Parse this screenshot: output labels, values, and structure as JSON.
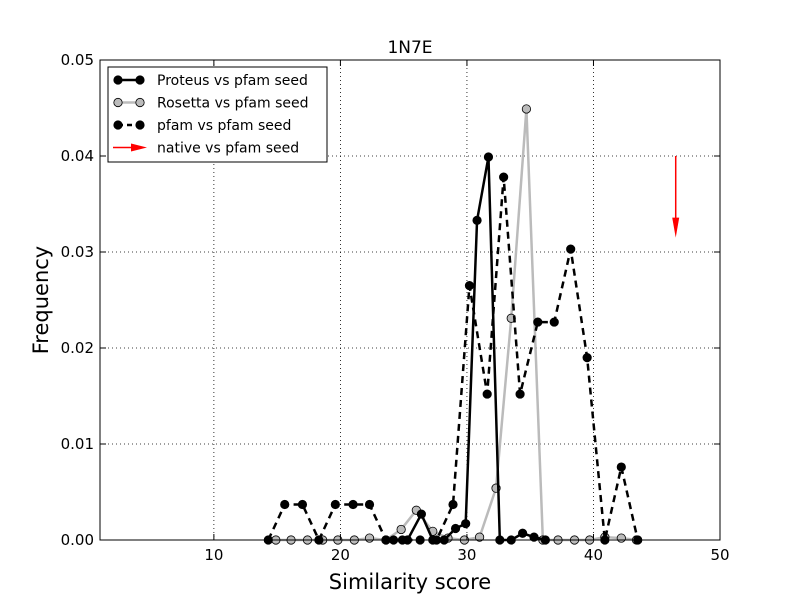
{
  "chart_data": {
    "type": "line",
    "title": "1N7E",
    "xlabel": "Similarity score",
    "ylabel": "Frequency",
    "xlim": [
      1,
      50
    ],
    "ylim": [
      0,
      0.05
    ],
    "xticks": [
      10,
      20,
      30,
      40,
      50
    ],
    "yticks": [
      0.0,
      0.01,
      0.02,
      0.03,
      0.04,
      0.05
    ],
    "ytick_labels": [
      "0.00",
      "0.01",
      "0.02",
      "0.03",
      "0.04",
      "0.05"
    ],
    "grid": true,
    "legend_position": "top-left",
    "series": [
      {
        "name": "Proteus vs pfam seed",
        "color": "#000000",
        "marker_fill": "#000000",
        "linestyle": "solid",
        "x": [
          24.2,
          25.3,
          26.4,
          27.3,
          28.2,
          29.1,
          29.9,
          30.8,
          31.7,
          32.6,
          33.5,
          34.4,
          35.3,
          36.2
        ],
        "y": [
          0.0,
          0.0,
          0.0027,
          0.0,
          0.0,
          0.0012,
          0.0017,
          0.0333,
          0.0399,
          0.0,
          0.0,
          0.0007,
          0.0003,
          0.0
        ]
      },
      {
        "name": "Rosetta vs pfam seed",
        "color": "#bbbbbb",
        "marker_fill": "#bbbbbb",
        "linestyle": "solid",
        "x": [
          14.9,
          16.1,
          17.4,
          18.6,
          19.8,
          21.1,
          22.3,
          23.6,
          24.8,
          26.0,
          27.3,
          28.5,
          29.8,
          31.0,
          32.3,
          33.5,
          34.7,
          36.0,
          37.2,
          38.5,
          39.7,
          40.9,
          42.2,
          43.4
        ],
        "y": [
          0.0,
          0.0,
          0.0,
          0.0,
          0.0,
          0.0,
          0.0002,
          0.0,
          0.0011,
          0.0031,
          0.0009,
          0.0002,
          0.0,
          0.0003,
          0.0054,
          0.0231,
          0.0449,
          0.0,
          0.0,
          0.0,
          0.0,
          0.0003,
          0.0002,
          0.0
        ]
      },
      {
        "name": "pfam vs pfam seed",
        "color": "#000000",
        "marker_fill": "#000000",
        "linestyle": "dashed",
        "x": [
          14.3,
          15.6,
          17.0,
          18.3,
          19.6,
          21.0,
          22.3,
          23.6,
          24.9,
          26.3,
          27.6,
          28.9,
          30.2,
          31.6,
          32.9,
          34.2,
          35.6,
          36.9,
          38.2,
          39.5,
          40.9,
          42.2,
          43.5
        ],
        "y": [
          0.0,
          0.0037,
          0.0037,
          0.0,
          0.0037,
          0.0037,
          0.0037,
          0.0,
          0.0,
          0.0,
          0.0,
          0.0037,
          0.0265,
          0.0152,
          0.0378,
          0.0152,
          0.0227,
          0.0227,
          0.0303,
          0.019,
          0.0,
          0.0076,
          0.0
        ]
      }
    ],
    "arrow": {
      "name": "native vs pfam seed",
      "color": "#ff0000",
      "x": 46.5,
      "y_from": 0.04,
      "y_to": 0.0315
    }
  }
}
